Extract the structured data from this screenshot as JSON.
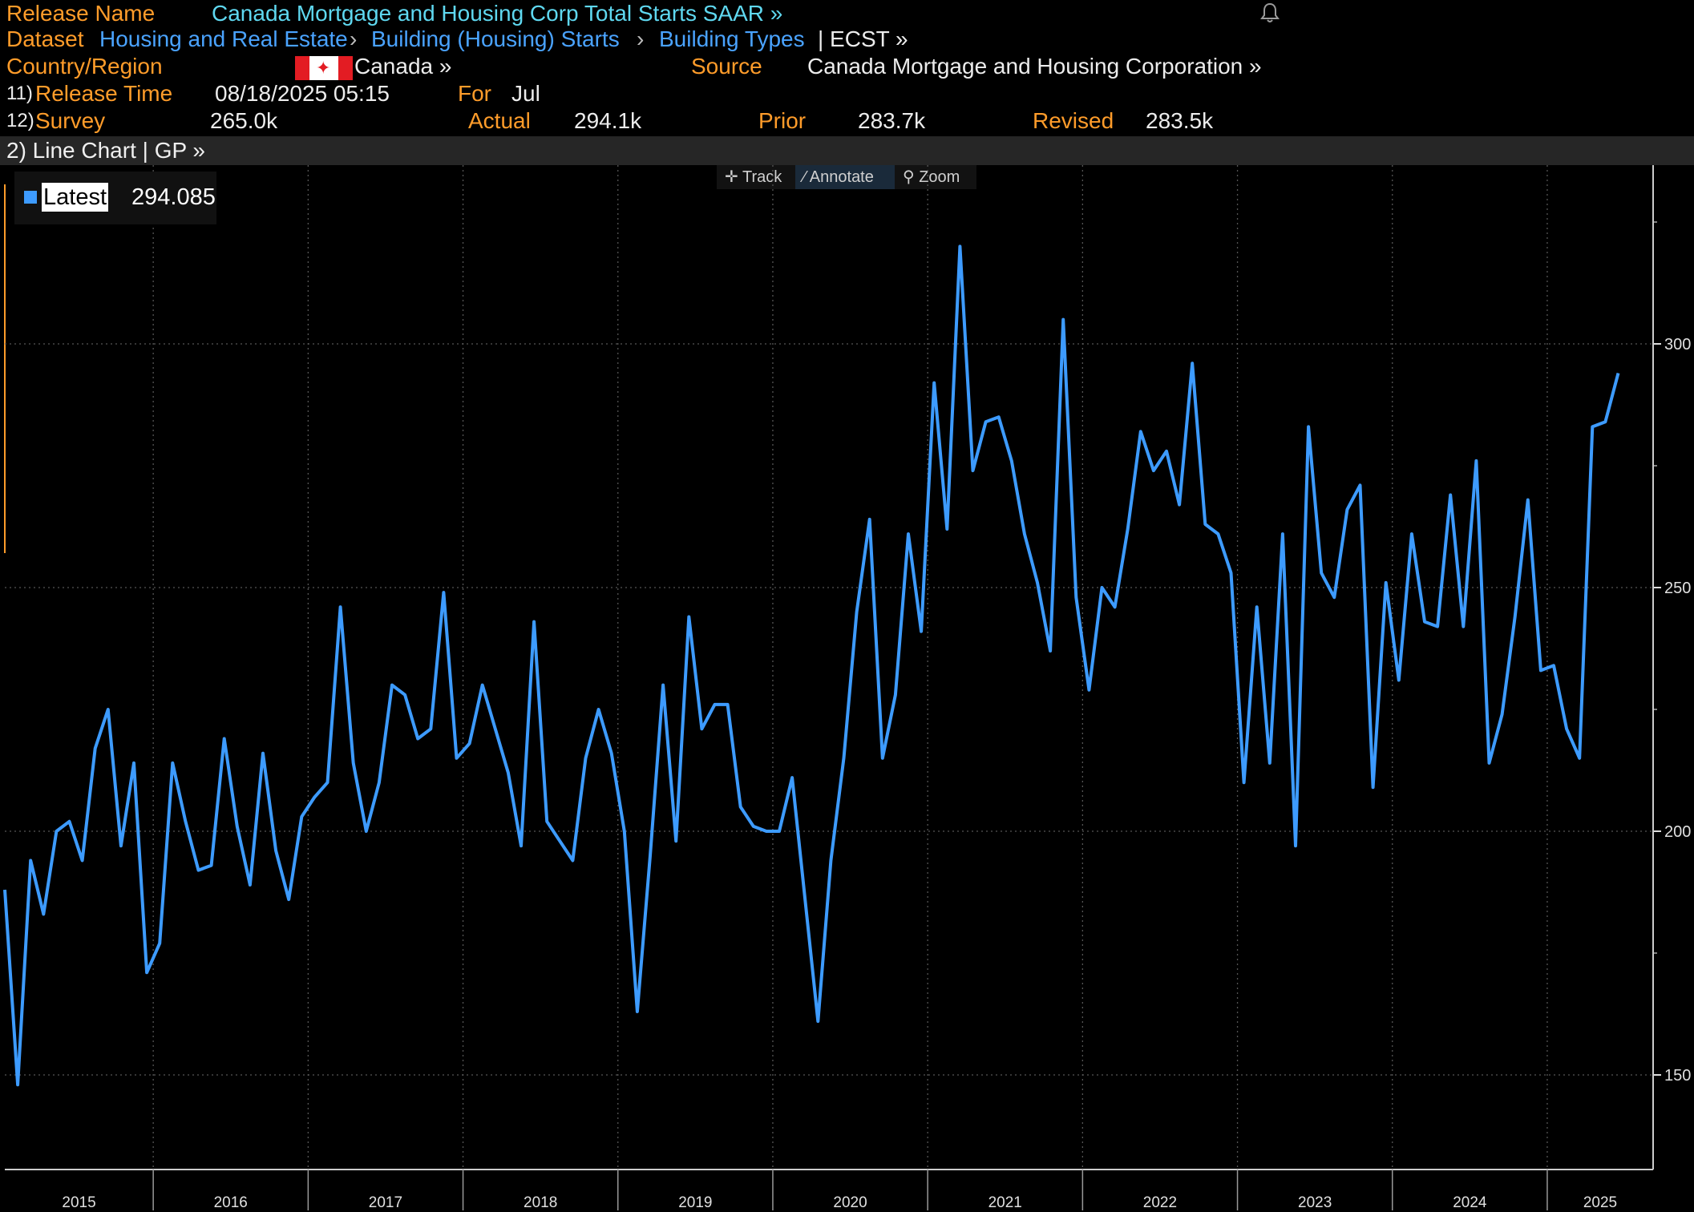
{
  "header": {
    "release_name_label": "Release Name",
    "release_name_value": "Canada Mortgage and Housing Corp Total Starts SAAR »",
    "dataset_label": "Dataset",
    "breadcrumb": [
      "Housing and Real Estate",
      "Building (Housing) Starts",
      "Building Types"
    ],
    "ticker": "| ECST »",
    "country_label": "Country/Region",
    "country_value": "Canada »",
    "source_label": "Source",
    "source_value": "Canada Mortgage and Housing Corporation »",
    "release_time_num": "11)",
    "release_time_label": "Release Time",
    "release_time_value": "08/18/2025 05:15",
    "for_label": "For",
    "for_value": "Jul",
    "survey_num": "12)",
    "survey_label": "Survey",
    "survey_value": "265.0k",
    "actual_label": "Actual",
    "actual_value": "294.1k",
    "prior_label": "Prior",
    "prior_value": "283.7k",
    "revised_label": "Revised",
    "revised_value": "283.5k"
  },
  "chart_bar": {
    "label": "2) Line Chart | GP »"
  },
  "toolbar": {
    "track": "Track",
    "annotate": "Annotate",
    "zoom": "Zoom"
  },
  "legend": {
    "label": "Latest",
    "value": "294.085"
  },
  "colors": {
    "line": "#3d9bff",
    "orange": "#ff9c2a",
    "cyan": "#5fd8f0",
    "blue": "#4aa3ff"
  },
  "chart_data": {
    "type": "line",
    "title": "",
    "xlabel": "",
    "ylabel": "",
    "ylim": [
      126,
      330
    ],
    "yticks": [
      150,
      200,
      250,
      300
    ],
    "x_year_labels": [
      "2015",
      "2016",
      "2017",
      "2018",
      "2019",
      "2020",
      "2021",
      "2022",
      "2023",
      "2024",
      "2025"
    ],
    "grid": true,
    "legend_position": "top-left",
    "x_start": "2015-01",
    "series": [
      {
        "name": "Latest",
        "values": [
          188,
          148,
          194,
          183,
          200,
          202,
          194,
          217,
          225,
          197,
          214,
          171,
          177,
          214,
          202,
          192,
          193,
          219,
          201,
          189,
          216,
          196,
          186,
          203,
          207,
          210,
          246,
          214,
          200,
          210,
          230,
          228,
          219,
          221,
          249,
          215,
          218,
          230,
          221,
          212,
          197,
          243,
          202,
          198,
          194,
          215,
          225,
          216,
          200,
          163,
          195,
          230,
          198,
          244,
          221,
          226,
          226,
          205,
          201,
          200,
          200,
          211,
          186,
          161,
          194,
          215,
          245,
          264,
          215,
          228,
          261,
          241,
          292,
          262,
          320,
          274,
          284,
          285,
          276,
          261,
          251,
          237,
          305,
          248,
          229,
          250,
          246,
          262,
          282,
          274,
          278,
          267,
          296,
          263,
          261,
          253,
          210,
          246,
          214,
          261,
          197,
          283,
          253,
          248,
          266,
          271,
          209,
          251,
          231,
          261,
          243,
          242,
          269,
          242,
          276,
          214,
          224,
          244,
          268,
          233,
          234,
          221,
          215,
          283,
          284,
          294
        ]
      }
    ]
  }
}
